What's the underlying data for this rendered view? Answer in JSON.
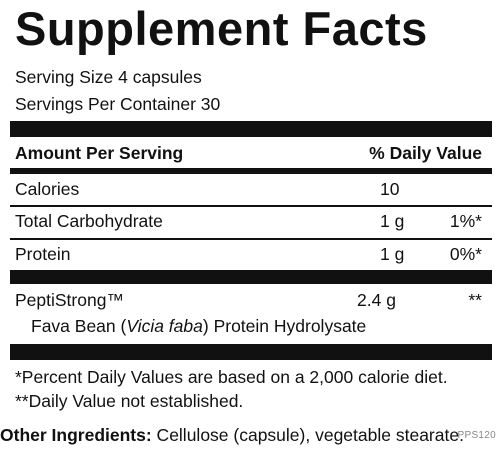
{
  "title": "Supplement Facts",
  "serving_size": "Serving Size 4 capsules",
  "servings_per_container": "Servings Per Container 30",
  "header": {
    "amount": "Amount Per Serving",
    "dv": "% Daily Value"
  },
  "rows": [
    {
      "name": "Calories",
      "amount": "10",
      "dv": ""
    },
    {
      "name": "Total Carbohydrate",
      "amount": "1 g",
      "dv": "1%*"
    },
    {
      "name": "Protein",
      "amount": "1 g",
      "dv": "0%*"
    }
  ],
  "blend": {
    "name": "PeptiStrong™",
    "amount": "2.4 g",
    "dv": "**",
    "sub_prefix": "Fava Bean (",
    "sub_italic": "Vicia faba",
    "sub_suffix": ") Protein Hydrolysate"
  },
  "footnotes": [
    "*Percent Daily Values are based on a 2,000 calorie diet.",
    "**Daily Value not established."
  ],
  "other_ingredients": {
    "label": "Other Ingredients:",
    "text": " Cellulose (capsule), vegetable stearate."
  },
  "product_code": "PPS120"
}
